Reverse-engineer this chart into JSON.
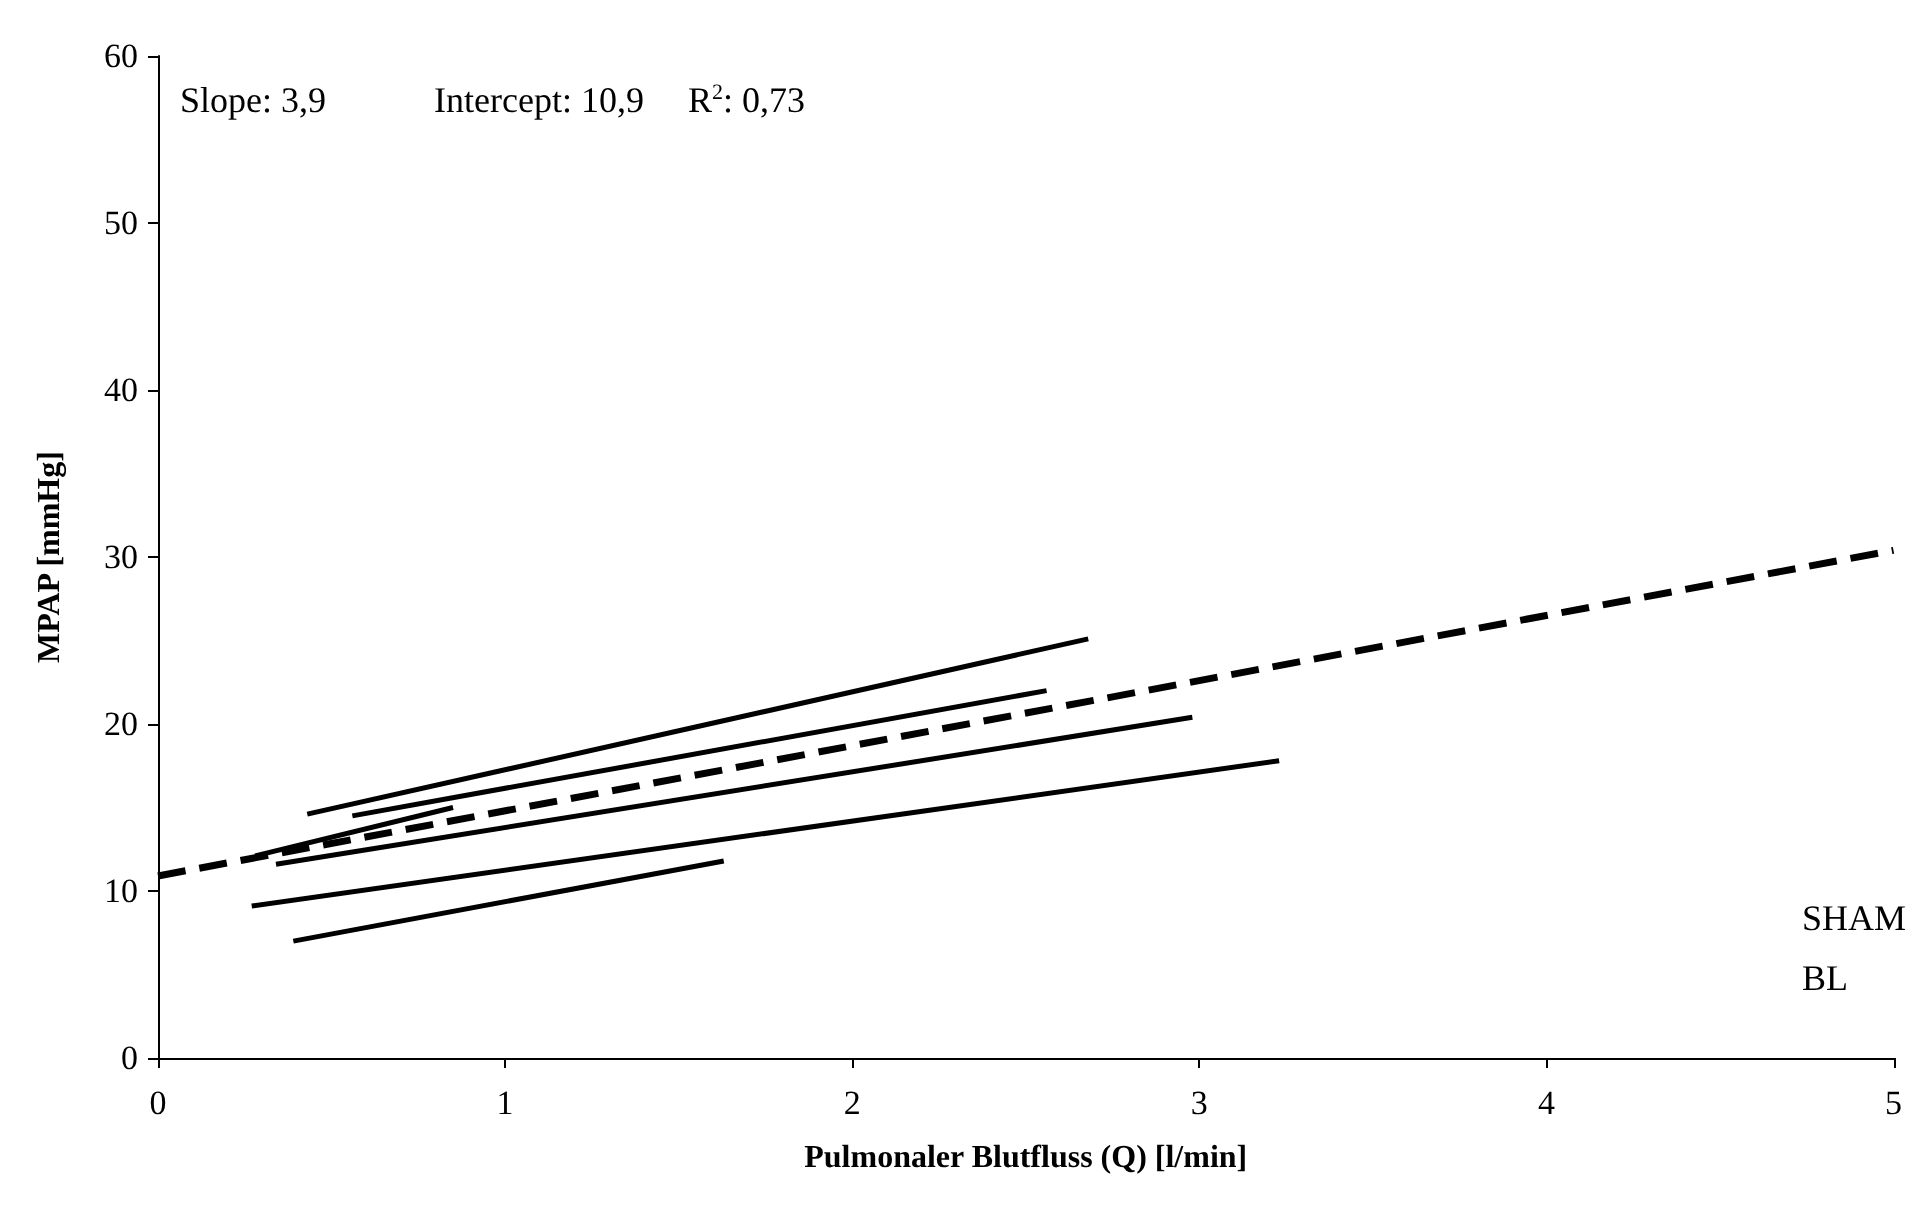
{
  "chart_data": {
    "type": "line",
    "xlabel": "Pulmonaler Blutfluss (Q) [l/min]",
    "ylabel": "MPAP [mmHg]",
    "xlim": [
      0,
      5
    ],
    "xticks": [
      0,
      1,
      2,
      3,
      4,
      5
    ],
    "ylim": [
      0,
      60
    ],
    "yticks": [
      0,
      10,
      20,
      30,
      40,
      50,
      60
    ],
    "grid": false,
    "marker": "none",
    "series": [
      {
        "color": "#000000",
        "x": [
          0.43,
          2.68
        ],
        "values": [
          14.6,
          25.1
        ]
      },
      {
        "color": "#000000",
        "x": [
          0.56,
          2.56
        ],
        "values": [
          14.5,
          22.0
        ]
      },
      {
        "color": "#000000",
        "x": [
          0.28,
          0.85
        ],
        "values": [
          12.1,
          15.0
        ]
      },
      {
        "color": "#000000",
        "x": [
          0.34,
          2.98
        ],
        "values": [
          11.6,
          20.4
        ]
      },
      {
        "color": "#000000",
        "x": [
          0.27,
          3.23
        ],
        "values": [
          9.1,
          17.8
        ]
      },
      {
        "color": "#000000",
        "x": [
          0.39,
          1.63
        ],
        "values": [
          7.0,
          11.8
        ]
      },
      {
        "color": "#000000",
        "line_style": "dashed",
        "x": [
          0,
          5
        ],
        "values": [
          10.9,
          30.4
        ]
      }
    ],
    "annotations": [
      "Slope: 3,9",
      "Intercept: 10,9",
      "R$^{2}$: 0,73",
      "SHAM",
      "BL"
    ]
  }
}
